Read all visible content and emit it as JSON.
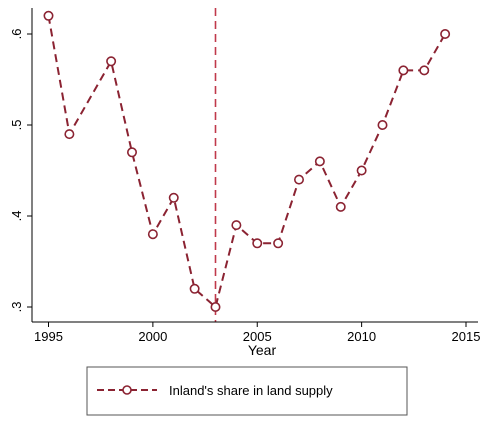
{
  "chart_data": {
    "type": "line",
    "xlabel": "Year",
    "ylabel": "",
    "xlim": [
      1995,
      2015
    ],
    "ylim": [
      0.3,
      0.6
    ],
    "x_ticks": [
      1995,
      2000,
      2005,
      2010,
      2015
    ],
    "x_tick_labels": [
      "1995",
      "2000",
      "2005",
      "2010",
      "2015"
    ],
    "y_ticks": [
      0.3,
      0.4,
      0.5,
      0.6
    ],
    "y_tick_labels": [
      ".3",
      ".4",
      ".5",
      ".6"
    ],
    "grid": false,
    "vertical_reference_line": {
      "x": 2003,
      "style": "dashed",
      "color": "#c0394b"
    },
    "legend": {
      "position": "bottom",
      "entries": [
        "Inland's share in land supply"
      ]
    },
    "series": [
      {
        "name": "Inland's share in land supply",
        "color": "#8b2332",
        "line_style": "dashed",
        "marker": "hollow-circle",
        "x": [
          1995,
          1996,
          1998,
          1999,
          2000,
          2001,
          2002,
          2003,
          2004,
          2005,
          2006,
          2007,
          2008,
          2009,
          2010,
          2011,
          2012,
          2013,
          2014
        ],
        "values": [
          0.62,
          0.49,
          0.57,
          0.47,
          0.38,
          0.42,
          0.32,
          0.3,
          0.39,
          0.37,
          0.37,
          0.44,
          0.46,
          0.41,
          0.45,
          0.5,
          0.56,
          0.56,
          0.6
        ]
      }
    ]
  }
}
